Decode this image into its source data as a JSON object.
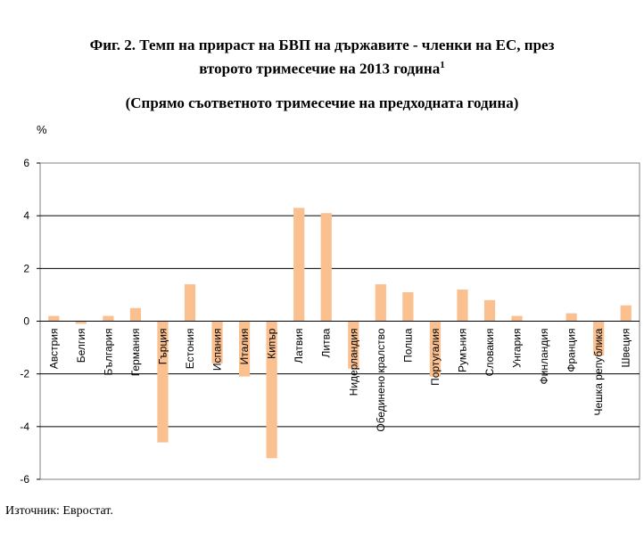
{
  "title_line1": "Фиг. 2. Темп на прираст на БВП на държавите - членки на ЕС, през",
  "title_line2": "второто тримесечие на 2013 година",
  "title_sup": "1",
  "subtitle": "(Спрямо съответното тримесечие на предходната година)",
  "source": "Източник: Евростат.",
  "chart_data": {
    "type": "bar",
    "ylabel": "%",
    "ylim": [
      -6,
      6
    ],
    "yticks": [
      6,
      4,
      2,
      0,
      -2,
      -4,
      -6
    ],
    "grid": true,
    "color": "#fac090",
    "categories": [
      "Австрия",
      "Белгия",
      "България",
      "Германия",
      "Гърция",
      "Естония",
      "Испания",
      "Италия",
      "Кипър",
      "Латвия",
      "Литва",
      "Нидерландия",
      "Обединено кралство",
      "Полша",
      "Португалия",
      "Румъния",
      "Словакия",
      "Унгария",
      "Финландия",
      "Франция",
      "Чешка република",
      "Швеция"
    ],
    "values": [
      0.2,
      -0.1,
      0.2,
      0.5,
      -4.6,
      1.4,
      -1.6,
      -2.1,
      -5.2,
      4.3,
      4.1,
      -1.8,
      1.4,
      1.1,
      -2.1,
      1.2,
      0.8,
      0.2,
      0.0,
      0.3,
      -1.3,
      0.6
    ]
  }
}
